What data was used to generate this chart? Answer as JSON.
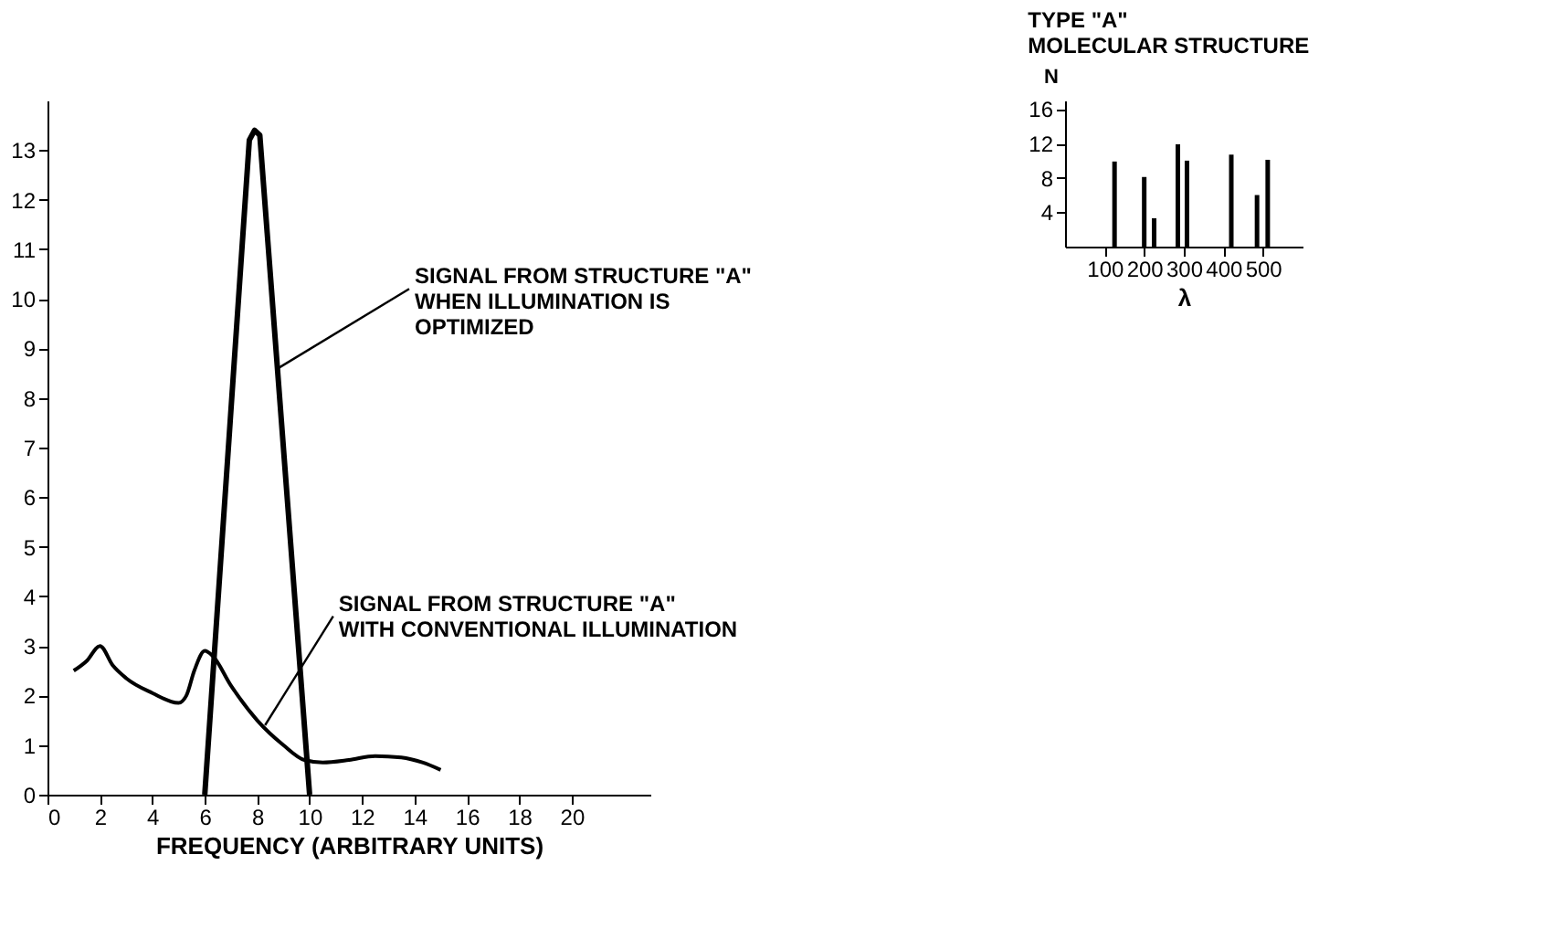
{
  "chart_data": [
    {
      "type": "line",
      "xlabel": "FREQUENCY (ARBITRARY UNITS)",
      "xlim": [
        0,
        23
      ],
      "xticks": [
        0,
        2,
        4,
        6,
        8,
        10,
        12,
        14,
        16,
        18,
        20
      ],
      "ylim": [
        0,
        14
      ],
      "yticks": [
        0,
        1,
        2,
        3,
        4,
        5,
        6,
        7,
        8,
        9,
        10,
        11,
        12,
        13
      ],
      "grid": false,
      "legend": false,
      "marker": "none",
      "line_style": "solid",
      "series": [
        {
          "color": "#000000",
          "x": [
            1,
            1.5,
            2,
            2.5,
            3,
            4,
            5,
            5.3,
            5.6,
            6,
            6.3,
            7,
            8,
            9,
            9.8,
            10.5,
            11.5,
            12.5,
            13.5,
            14.3,
            15
          ],
          "values": [
            2.5,
            2.7,
            3,
            2.6,
            2.35,
            2.05,
            1.85,
            2.0,
            2.5,
            2.9,
            2.8,
            2.2,
            1.5,
            1.0,
            0.7,
            0.65,
            0.7,
            0.78,
            0.75,
            0.65,
            0.5
          ]
        },
        {
          "color": "#000000",
          "x": [
            6,
            7.7,
            7.9,
            8.1,
            10
          ],
          "values": [
            0,
            13.2,
            13.4,
            13.3,
            0
          ]
        }
      ],
      "annotations": [
        {
          "text": "SIGNAL FROM STRUCTURE \"A\"\nWHEN ILLUMINATION IS\nOPTIMIZED",
          "x": 8.8,
          "y": 8.6
        },
        {
          "text": "SIGNAL FROM STRUCTURE \"A\"\nWITH CONVENTIONAL ILLUMINATION",
          "x": 8.3,
          "y": 1.4
        }
      ]
    },
    {
      "type": "bar",
      "title": "TYPE \"A\"\nMOLECULAR STRUCTURE",
      "xlabel": "λ",
      "ylabel": "N",
      "xlim": [
        0,
        600
      ],
      "xticks": [
        100,
        200,
        300,
        400,
        500
      ],
      "ylim": [
        0,
        17
      ],
      "yticks": [
        4,
        8,
        12,
        16
      ],
      "grid": false,
      "x": [
        125,
        200,
        225,
        285,
        308,
        420,
        485,
        512
      ],
      "values": [
        9.9,
        8.1,
        3.3,
        11.9,
        10,
        10.7,
        6,
        10.1
      ],
      "color": "#000000"
    }
  ]
}
